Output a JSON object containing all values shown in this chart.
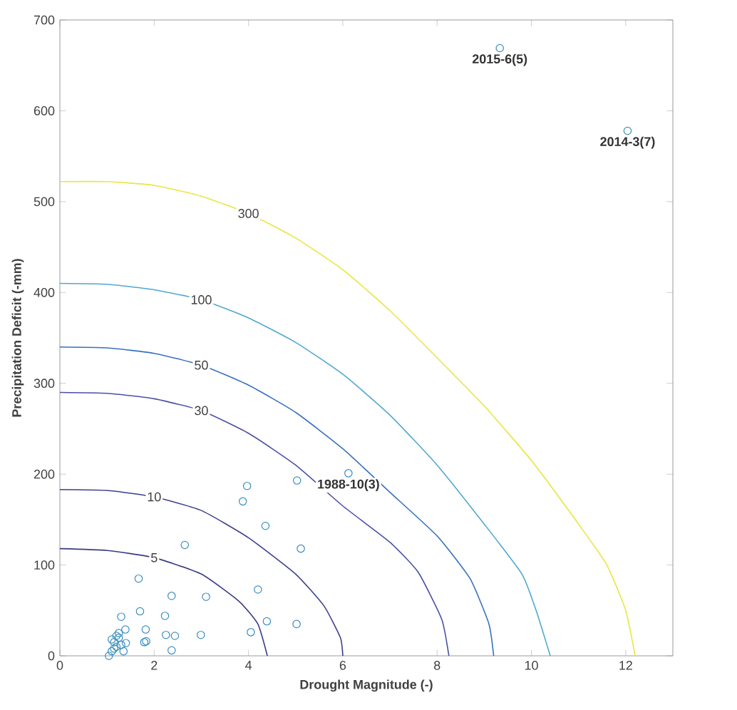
{
  "chart_data": {
    "type": "scatter",
    "xlabel": "Drought Magnitude (-)",
    "ylabel": "Precipitation Deficit (-mm)",
    "xlim": [
      0,
      13
    ],
    "ylim": [
      0,
      700
    ],
    "xticks": [
      0,
      2,
      4,
      6,
      8,
      10,
      12
    ],
    "yticks": [
      0,
      100,
      200,
      300,
      400,
      500,
      600,
      700
    ],
    "grid": false,
    "legend": false,
    "series": [
      {
        "name": "5",
        "type": "line",
        "color": "#3b3a85",
        "x": [
          0,
          1,
          2,
          3,
          3.8,
          4.2,
          4.4
        ],
        "values": [
          118,
          116,
          108,
          90,
          60,
          35,
          0
        ]
      },
      {
        "name": "10",
        "type": "line",
        "color": "#3d3f8f",
        "x": [
          0,
          1,
          2,
          3,
          4,
          5,
          5.6,
          5.95,
          6
        ],
        "values": [
          183,
          182,
          175,
          160,
          130,
          90,
          55,
          20,
          0
        ]
      },
      {
        "name": "30",
        "type": "line",
        "color": "#4a4fa8",
        "x": [
          0,
          1,
          2,
          3,
          4,
          5,
          6,
          7,
          7.6,
          8.1,
          8.25
        ],
        "values": [
          290,
          289,
          283,
          270,
          245,
          210,
          165,
          125,
          92,
          40,
          0
        ]
      },
      {
        "name": "50",
        "type": "line",
        "color": "#3671c0",
        "x": [
          0,
          1,
          2,
          3,
          4,
          5,
          6,
          7,
          8,
          8.7,
          9.1,
          9.2
        ],
        "values": [
          340,
          339,
          333,
          320,
          298,
          268,
          228,
          180,
          132,
          85,
          35,
          0
        ]
      },
      {
        "name": "100",
        "type": "line",
        "color": "#4fa8cf",
        "x": [
          0,
          1,
          2,
          3,
          4,
          5,
          6,
          7,
          8,
          9,
          9.8,
          10.1,
          10.4
        ],
        "values": [
          410,
          409,
          403,
          392,
          372,
          345,
          310,
          265,
          210,
          145,
          90,
          50,
          0
        ]
      },
      {
        "name": "300",
        "type": "line",
        "color": "#e8e640",
        "x": [
          0,
          1,
          2,
          3,
          4,
          5,
          6,
          7,
          8,
          9,
          10,
          11,
          11.6,
          12,
          12.2
        ],
        "values": [
          522,
          522,
          518,
          506,
          487,
          460,
          425,
          380,
          328,
          275,
          215,
          145,
          100,
          50,
          0
        ]
      },
      {
        "marker": "circle",
        "color": "#3a8fc0",
        "x": [
          9.33,
          12.04,
          6.12,
          5.03,
          3.97,
          3.88,
          4.36,
          5.11,
          2.65,
          1.67,
          2.37,
          3.1,
          4.2,
          1.7,
          1.3,
          2.23,
          4.39,
          5.02,
          1.39,
          1.82,
          2.99,
          2.25,
          2.44,
          4.05,
          1.79,
          1.83,
          2.37,
          1.04,
          1.2,
          1.15,
          1.25,
          1.1,
          1.3,
          1.15,
          1.4,
          1.2,
          1.35,
          1.1,
          1.25
        ],
        "values": [
          669,
          578,
          201,
          193,
          187,
          170,
          143,
          118,
          122,
          85,
          66,
          65,
          73,
          49,
          43,
          44,
          38,
          35,
          29,
          29,
          23,
          23,
          22,
          26,
          15,
          16,
          6,
          0,
          10,
          15,
          20,
          5,
          12,
          8,
          14,
          22,
          5,
          18,
          25
        ]
      }
    ],
    "annotations": [
      {
        "text": "2015-6(5)",
        "x": 9.33,
        "y": 669
      },
      {
        "text": "2014-3(7)",
        "x": 12.04,
        "y": 578
      },
      {
        "text": "1988-10(3)",
        "x": 6.12,
        "y": 201
      }
    ]
  }
}
